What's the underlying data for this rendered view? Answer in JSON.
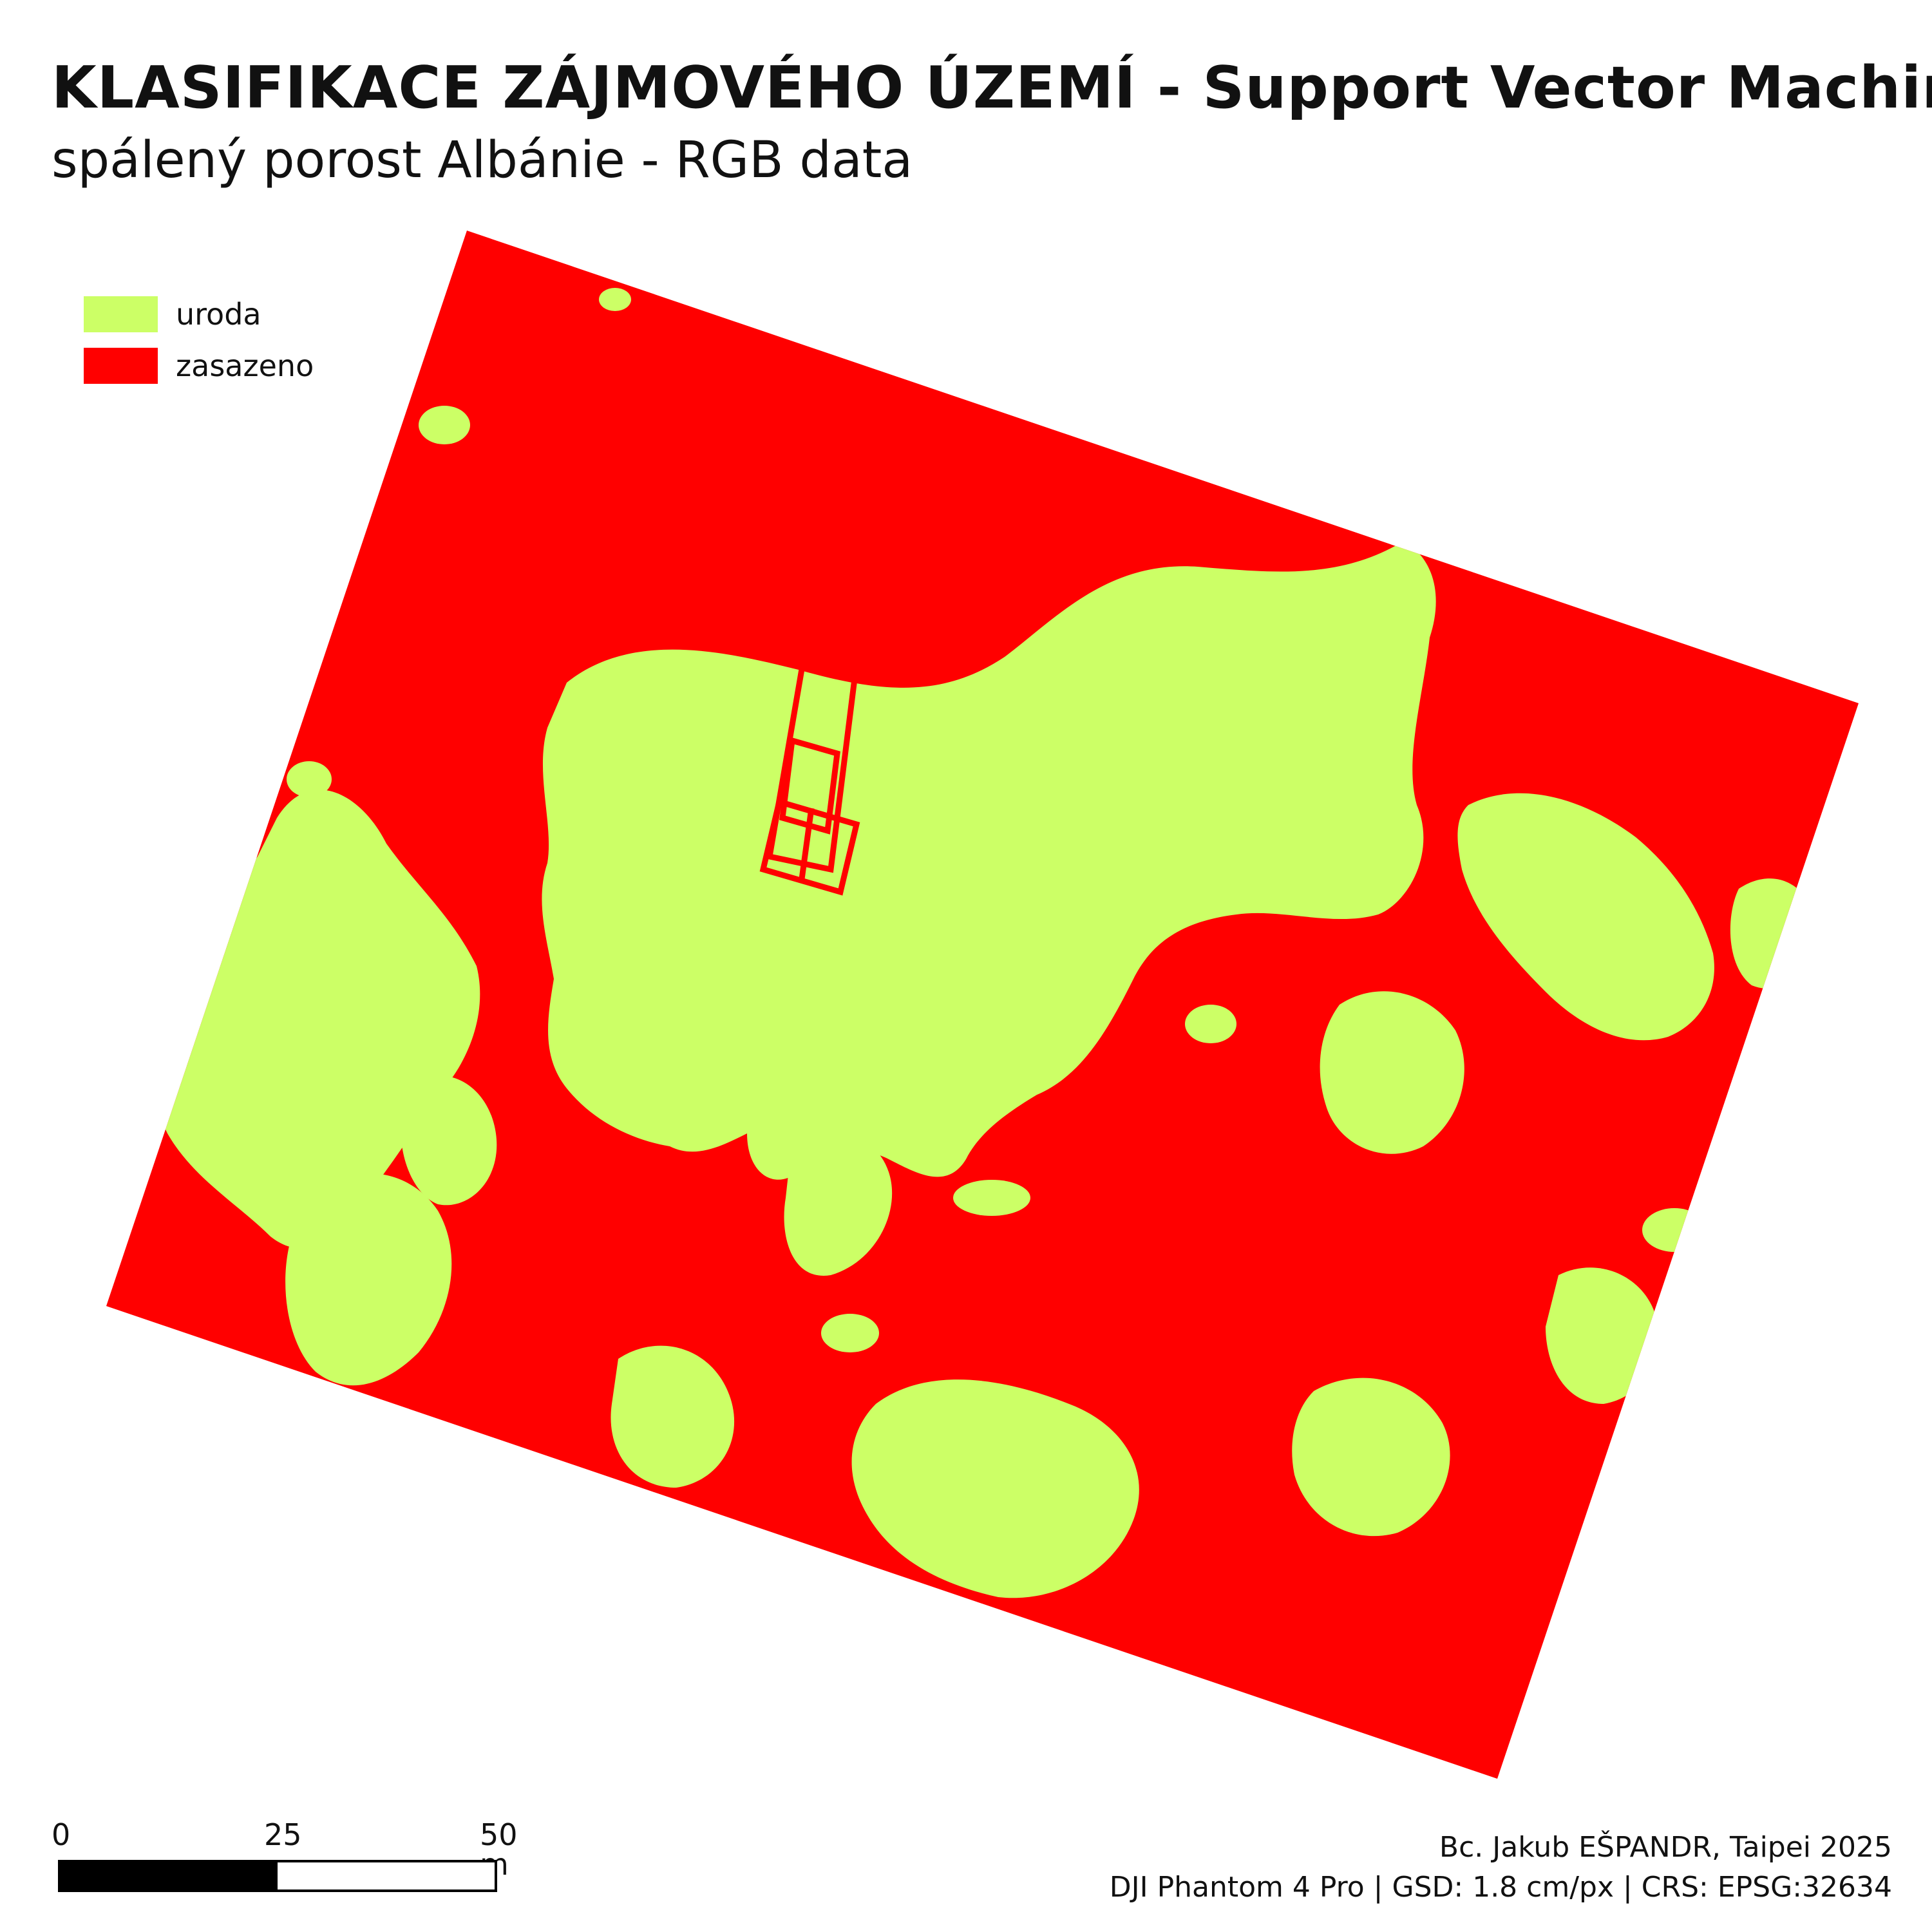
{
  "header": {
    "title": "KLASIFIKACE ZÁJMOVÉHO ÚZEMÍ - Support Vector Machine",
    "subtitle": "spálený porost Albánie - RGB data"
  },
  "legend": [
    {
      "label": "uroda",
      "color": "#CCFF66"
    },
    {
      "label": "zasazeno",
      "color": "#FF0000"
    }
  ],
  "scale_bar": {
    "labels": [
      "0",
      "25",
      "50 m"
    ],
    "segment_colors": [
      "#000000",
      "#ffffff"
    ]
  },
  "credits": {
    "author": "Bc. Jakub EŠPANDR, Taipei 2025",
    "metadata": "DJI Phantom 4 Pro | GSD: 1.8 cm/px | CRS: EPSG:32634"
  }
}
